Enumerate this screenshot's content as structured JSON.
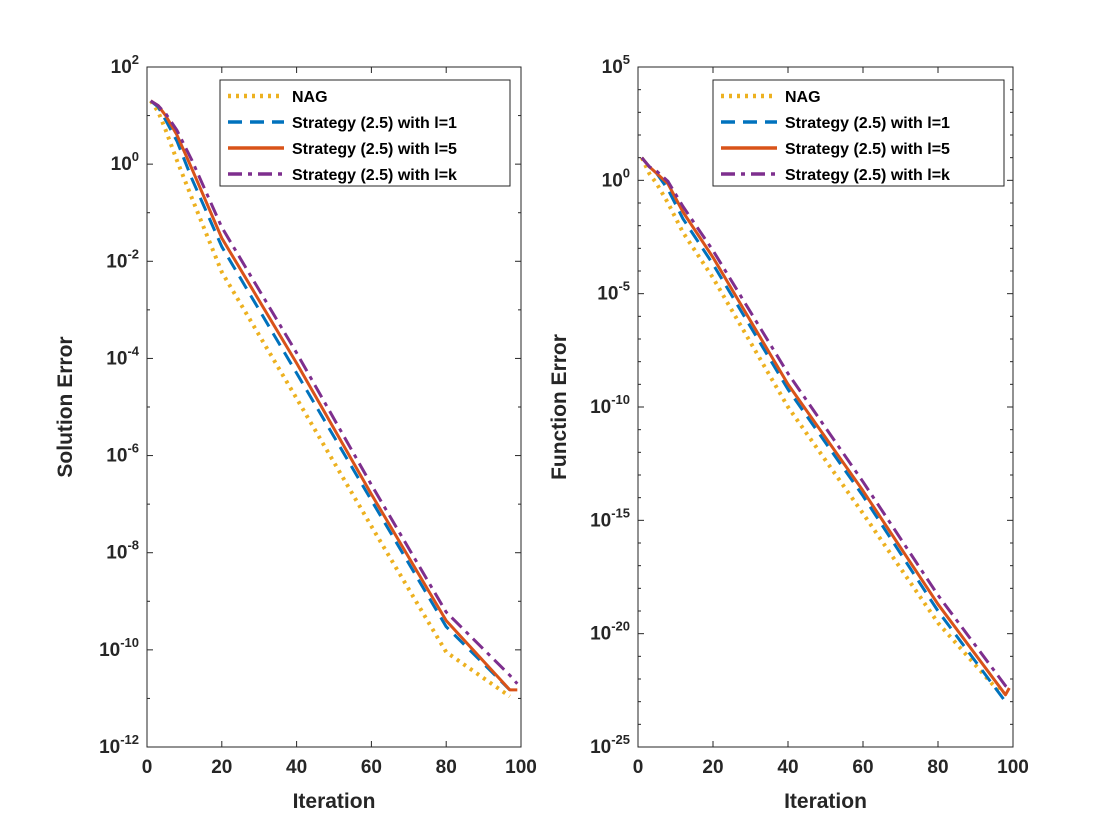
{
  "chart_data": [
    {
      "type": "line",
      "xlabel": "Iteration",
      "ylabel": "Solution Error",
      "xlim": [
        0,
        100
      ],
      "ylim": [
        1e-12,
        100
      ],
      "yscale": "log",
      "xticks": [
        0,
        20,
        40,
        60,
        80,
        100
      ],
      "yticks": [
        -12,
        -10,
        -8,
        -6,
        -4,
        -2,
        0,
        2
      ],
      "grid": false,
      "legend_position": "top-right",
      "series": [
        {
          "name": "NAG",
          "style": "dotted",
          "color": "#EDB120",
          "x": [
            1,
            3,
            5,
            8,
            12,
            20,
            40,
            60,
            80,
            97
          ],
          "y": [
            20,
            12,
            5,
            1.2,
            0.2,
            0.006,
            1.5e-05,
            3.5e-08,
            9e-11,
            1.1e-11
          ]
        },
        {
          "name": "Strategy (2.5) with l=1",
          "style": "dashed",
          "color": "#0072BD",
          "x": [
            1,
            3,
            5,
            8,
            12,
            20,
            40,
            60,
            80,
            97
          ],
          "y": [
            20,
            15,
            8,
            3,
            0.5,
            0.02,
            5e-05,
            1.2e-07,
            3e-10,
            1.5e-11
          ]
        },
        {
          "name": "Strategy (2.5) with l=5",
          "style": "solid",
          "color": "#D95319",
          "x": [
            1,
            3,
            5,
            8,
            12,
            20,
            40,
            60,
            80,
            97,
            99
          ],
          "y": [
            20,
            16,
            10,
            4,
            0.8,
            0.03,
            8e-05,
            1.6e-07,
            4e-10,
            1.5e-11,
            1.5e-11
          ]
        },
        {
          "name": "Strategy (2.5) with l=k",
          "style": "dashdot",
          "color": "#7E2F8E",
          "x": [
            1,
            3,
            5,
            8,
            12,
            20,
            40,
            60,
            80,
            97,
            99
          ],
          "y": [
            20,
            16,
            11,
            5,
            1.2,
            0.05,
            0.00013,
            2.5e-07,
            6e-10,
            3e-11,
            2e-11
          ]
        }
      ]
    },
    {
      "type": "line",
      "xlabel": "Iteration",
      "ylabel": "Function Error",
      "xlim": [
        0,
        100
      ],
      "ylim": [
        1e-25,
        100000.0
      ],
      "yscale": "log",
      "xticks": [
        0,
        20,
        40,
        60,
        80,
        100
      ],
      "yticks": [
        -25,
        -20,
        -15,
        -10,
        -5,
        0,
        5
      ],
      "grid": false,
      "legend_position": "top-right",
      "series": [
        {
          "name": "NAG",
          "style": "dotted",
          "color": "#EDB120",
          "x": [
            1,
            3,
            5,
            8,
            12,
            20,
            40,
            60,
            80,
            97
          ],
          "y": [
            10,
            2,
            0.7,
            0.1,
            0.005,
            5e-05,
            1e-10,
            2e-15,
            3e-20,
            2e-23
          ]
        },
        {
          "name": "Strategy (2.5) with l=1",
          "style": "dashed",
          "color": "#0072BD",
          "x": [
            1,
            3,
            5,
            8,
            12,
            20,
            40,
            60,
            80,
            98
          ],
          "y": [
            10,
            4,
            2,
            0.4,
            0.02,
            0.0002,
            6e-10,
            1.2e-14,
            1e-19,
            1e-23
          ]
        },
        {
          "name": "Strategy (2.5) with l=5",
          "style": "solid",
          "color": "#D95319",
          "x": [
            1,
            3,
            5,
            8,
            12,
            20,
            40,
            60,
            80,
            98,
            99
          ],
          "y": [
            10,
            4,
            2,
            0.7,
            0.04,
            0.0004,
            1e-09,
            2e-14,
            2e-19,
            2e-23,
            4e-23
          ]
        },
        {
          "name": "Strategy (2.5) with l=k",
          "style": "dashdot",
          "color": "#7E2F8E",
          "x": [
            1,
            3,
            5,
            8,
            12,
            20,
            40,
            60,
            80,
            98,
            99
          ],
          "y": [
            10,
            4,
            2.5,
            0.9,
            0.07,
            0.0008,
            3e-09,
            5e-14,
            5e-19,
            5e-23,
            4e-23
          ]
        }
      ]
    }
  ]
}
